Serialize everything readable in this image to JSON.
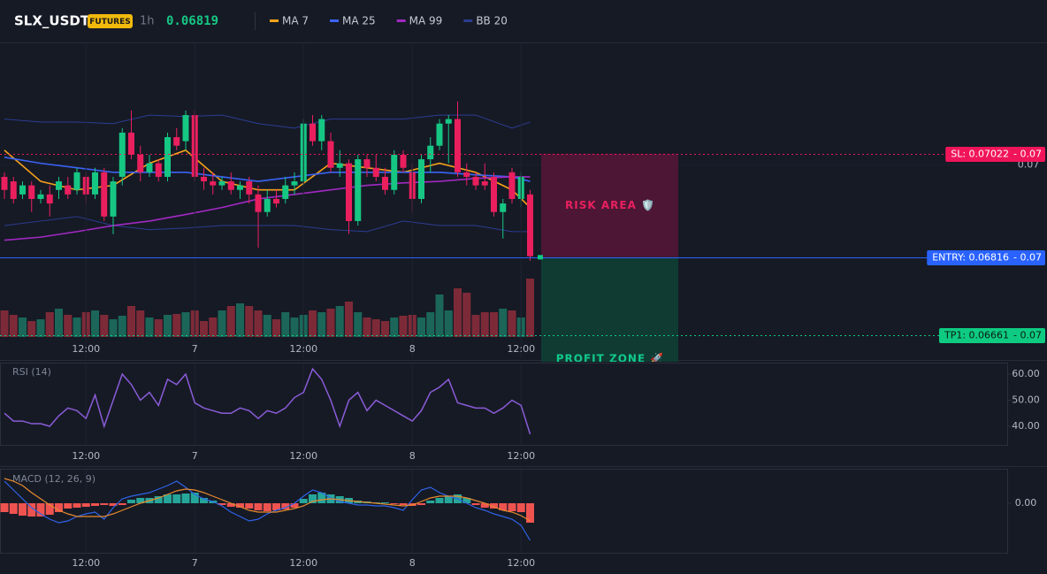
{
  "header": {
    "symbol": "SLX_USDT",
    "badge": "FUTURES",
    "interval": "1h",
    "price": 0.06819
  },
  "chart_data": [
    {
      "type": "candlestick",
      "categories": [
        null,
        null,
        null,
        null,
        null,
        null,
        null,
        null,
        null,
        "12:00",
        null,
        null,
        null,
        null,
        null,
        null,
        null,
        null,
        null,
        null,
        null,
        "7",
        null,
        null,
        null,
        null,
        null,
        null,
        null,
        null,
        null,
        null,
        null,
        "12:00",
        null,
        null,
        null,
        null,
        null,
        null,
        null,
        null,
        null,
        null,
        null,
        "8",
        null,
        null,
        null,
        null,
        null,
        null,
        null,
        null,
        null,
        null,
        null,
        "12:00",
        null
      ],
      "open": [
        0.06976,
        0.06967,
        0.06941,
        0.06959,
        0.06932,
        0.06941,
        0.0695,
        0.06959,
        0.0695,
        0.06976,
        0.06941,
        0.06985,
        0.06897,
        0.06976,
        0.07064,
        0.0702,
        0.06985,
        0.07003,
        0.06976,
        0.07055,
        0.07047,
        0.07099,
        0.06976,
        0.06967,
        0.06959,
        0.06967,
        0.0695,
        0.06967,
        0.06941,
        0.06906,
        0.06932,
        0.06932,
        0.06959,
        0.06967,
        0.07082,
        0.07047,
        0.07047,
        0.06994,
        0.07003,
        0.06888,
        0.07011,
        0.06994,
        0.06976,
        0.0695,
        0.0702,
        0.06985,
        0.06932,
        0.07011,
        0.07038,
        0.07082,
        0.07091,
        0.06985,
        0.06976,
        0.06967,
        0.06976,
        0.06906,
        0.06985,
        0.06932,
        0.06941
      ],
      "high": [
        0.06985,
        0.06976,
        0.06967,
        0.06967,
        0.0695,
        0.06959,
        0.06976,
        0.06976,
        0.06994,
        0.06985,
        0.06994,
        0.06994,
        0.06976,
        0.07073,
        0.07108,
        0.07038,
        0.0702,
        0.07011,
        0.07064,
        0.07073,
        0.07108,
        0.07108,
        0.06994,
        0.06985,
        0.06976,
        0.06985,
        0.06967,
        0.06976,
        0.06959,
        0.0695,
        0.0695,
        0.06976,
        0.06985,
        0.07091,
        0.07099,
        0.07099,
        0.07064,
        0.07029,
        0.07011,
        0.0702,
        0.0702,
        0.0702,
        0.06994,
        0.07029,
        0.07029,
        0.07003,
        0.0702,
        0.07055,
        0.07091,
        0.07099,
        0.07126,
        0.07003,
        0.06985,
        0.07003,
        0.06985,
        0.06932,
        0.06994,
        0.06985,
        0.0695
      ],
      "low": [
        0.06932,
        0.06923,
        0.06932,
        0.06906,
        0.06923,
        0.06897,
        0.06932,
        0.06932,
        0.06941,
        0.06923,
        0.06932,
        0.06888,
        0.06862,
        0.06959,
        0.07011,
        0.06967,
        0.06976,
        0.06967,
        0.06967,
        0.07029,
        0.07029,
        0.06967,
        0.0695,
        0.06941,
        0.0695,
        0.06941,
        0.06932,
        0.06923,
        0.06835,
        0.06897,
        0.06915,
        0.06923,
        0.06941,
        0.06959,
        0.07038,
        0.07029,
        0.06985,
        0.06976,
        0.06862,
        0.06879,
        0.06976,
        0.06967,
        0.06941,
        0.06941,
        0.06985,
        0.06906,
        0.06923,
        0.06985,
        0.07029,
        0.07003,
        0.06976,
        0.06959,
        0.0695,
        0.0695,
        0.06897,
        0.06853,
        0.06923,
        0.06915,
        0.06809
      ],
      "close": [
        0.0695,
        0.06932,
        0.06959,
        0.06932,
        0.06941,
        0.06923,
        0.06967,
        0.06941,
        0.06985,
        0.06941,
        0.06985,
        0.06897,
        0.06967,
        0.07064,
        0.0702,
        0.06985,
        0.07003,
        0.06976,
        0.07055,
        0.07038,
        0.07099,
        0.06976,
        0.06967,
        0.06959,
        0.06967,
        0.0695,
        0.06959,
        0.06941,
        0.06906,
        0.06932,
        0.06923,
        0.06959,
        0.06967,
        0.07082,
        0.07047,
        0.07091,
        0.06994,
        0.07003,
        0.06888,
        0.07011,
        0.06994,
        0.06976,
        0.0695,
        0.0702,
        0.06994,
        0.06932,
        0.07011,
        0.07038,
        0.07082,
        0.07091,
        0.06985,
        0.06976,
        0.06959,
        0.06959,
        0.06906,
        0.06923,
        0.06932,
        0.06976,
        0.06818
      ],
      "up_color": "#16c784",
      "down_color": "#ea1f5e",
      "ylim": [
        0.06615,
        0.0724
      ],
      "yticks": [
        0.07
      ],
      "lines": [
        {
          "name": "MA 7",
          "color": "#f7a21b",
          "x": [
            0,
            4,
            8,
            12,
            16,
            20,
            24,
            28,
            32,
            36,
            40,
            44,
            48,
            52,
            56,
            58
          ],
          "values": [
            0.07029,
            0.06967,
            0.0695,
            0.06959,
            0.07003,
            0.07029,
            0.06967,
            0.0695,
            0.0695,
            0.07003,
            0.06994,
            0.06985,
            0.07003,
            0.06985,
            0.0695,
            0.06915
          ]
        },
        {
          "name": "MA 25",
          "color": "#3b63f5",
          "x": [
            0,
            4,
            8,
            12,
            16,
            20,
            24,
            28,
            32,
            36,
            40,
            44,
            48,
            52,
            56,
            58
          ],
          "values": [
            0.07015,
            0.07003,
            0.06994,
            0.06985,
            0.06985,
            0.06985,
            0.06976,
            0.06967,
            0.06976,
            0.06985,
            0.06985,
            0.06985,
            0.06985,
            0.0698,
            0.06976,
            0.06967
          ]
        },
        {
          "name": "MA 99",
          "color": "#a129c2",
          "x": [
            0,
            4,
            8,
            12,
            16,
            20,
            24,
            28,
            32,
            36,
            40,
            44,
            48,
            52,
            56,
            58
          ],
          "values": [
            0.0685,
            0.06856,
            0.06867,
            0.06879,
            0.06888,
            0.06901,
            0.06915,
            0.06932,
            0.06941,
            0.0695,
            0.06959,
            0.06964,
            0.06967,
            0.06973,
            0.06976,
            0.06976
          ]
        }
      ],
      "bollinger": {
        "name": "BB 20",
        "color": "#2b3d91",
        "x": [
          0,
          4,
          8,
          12,
          16,
          20,
          24,
          28,
          32,
          36,
          40,
          44,
          48,
          52,
          56,
          58
        ],
        "upper": [
          0.07091,
          0.07085,
          0.07085,
          0.07082,
          0.07099,
          0.07096,
          0.07099,
          0.07082,
          0.07073,
          0.07091,
          0.07091,
          0.07091,
          0.07099,
          0.07099,
          0.07073,
          0.07085
        ],
        "lower": [
          0.06879,
          0.06888,
          0.06897,
          0.06879,
          0.06871,
          0.06874,
          0.06879,
          0.06879,
          0.06879,
          0.06871,
          0.06867,
          0.06888,
          0.06879,
          0.06879,
          0.06867,
          0.06867
        ]
      },
      "volume": {
        "values": [
          30,
          25,
          22,
          18,
          20,
          28,
          32,
          25,
          22,
          28,
          30,
          25,
          20,
          24,
          35,
          30,
          22,
          20,
          25,
          26,
          28,
          30,
          18,
          22,
          30,
          35,
          38,
          35,
          30,
          25,
          20,
          28,
          22,
          25,
          30,
          28,
          32,
          35,
          40,
          28,
          22,
          20,
          18,
          22,
          24,
          25,
          22,
          28,
          48,
          30,
          55,
          50,
          25,
          28,
          28,
          32,
          30,
          22,
          66
        ],
        "ylim": [
          0,
          100
        ],
        "up_color": "#1b6658",
        "down_color": "#7d2a38"
      },
      "price_tag_suffix": "- 0.07",
      "price_lines": [
        {
          "label": "SL: 0.07022",
          "value": 0.07022,
          "color": "#f0155a",
          "text_color": "#ffffff",
          "style": "dotted"
        },
        {
          "label": "ENTRY: 0.06816",
          "value": 0.06816,
          "color": "#2962ff",
          "text_color": "#ffffff",
          "style": "solid"
        },
        {
          "label": "TP1: 0.06661",
          "value": 0.06661,
          "color": "#0ecb81",
          "text_color": "#0b1a14",
          "style": "dotted"
        }
      ],
      "zones": [
        {
          "label": "RISK AREA 🛡️",
          "from": 0.07022,
          "to": 0.06816,
          "color": "#4d1634",
          "text_color": "#e8205f"
        },
        {
          "label": "PROFIT ZONE 🚀",
          "from": 0.06816,
          "color": "#0f3b33",
          "text_color": "#12c98a"
        }
      ]
    },
    {
      "type": "line",
      "title": "RSI (14)",
      "color": "#8a5cd8",
      "values": [
        45,
        42,
        42,
        41,
        41,
        40,
        44,
        47,
        46,
        43,
        52,
        40,
        50,
        60,
        56,
        50,
        53,
        48,
        58,
        56,
        60,
        49,
        47,
        46,
        45,
        45,
        47,
        46,
        43,
        46,
        45,
        47,
        51,
        53,
        62,
        58,
        50,
        40,
        50,
        53,
        46,
        50,
        48,
        46,
        44,
        42,
        46,
        53,
        55,
        58,
        49,
        48,
        47,
        47,
        45,
        47,
        50,
        48,
        37
      ],
      "ylim": [
        32.2,
        64.4
      ],
      "yticks": [
        {
          "value": 60,
          "label": "60.00"
        },
        {
          "value": 50,
          "label": "50.00"
        },
        {
          "value": 40,
          "label": "40.00"
        }
      ]
    },
    {
      "type": "macd",
      "title": "MACD (12, 26, 9)",
      "histogram": {
        "up_color": "#26a69a",
        "down_color": "#ef5350",
        "values": [
          -2e-05,
          -2.4e-05,
          -2.8e-05,
          -3e-05,
          -3e-05,
          -2.6e-05,
          -2e-05,
          -1.2e-05,
          -1e-05,
          -8e-06,
          -6e-06,
          -4e-06,
          -6e-06,
          -4e-06,
          8e-06,
          1.2e-05,
          1.2e-05,
          1.6e-05,
          2e-05,
          2e-05,
          2.2e-05,
          2.4e-05,
          1.2e-05,
          6e-06,
          -4e-06,
          -8e-06,
          -1e-05,
          -1.2e-05,
          -1.6e-05,
          -1.8e-05,
          -1.6e-05,
          -1.4e-05,
          -1e-05,
          1e-05,
          2e-05,
          2.4e-05,
          2e-05,
          1.6e-05,
          1.2e-05,
          6e-06,
          4e-06,
          2e-06,
          2e-06,
          -2e-06,
          -4e-06,
          -6e-06,
          -4e-06,
          6e-06,
          1.2e-05,
          1.6e-05,
          2e-05,
          1.2e-05,
          -4e-06,
          -1e-05,
          -1.2e-05,
          -1.6e-05,
          -1.8e-05,
          -2e-05,
          -4.4e-05
        ]
      },
      "series": [
        {
          "color": "#2f63e8",
          "values": [
            5e-05,
            3e-05,
            1e-05,
            -1e-05,
            -2.4e-05,
            -3.6e-05,
            -4.4e-05,
            -4e-05,
            -3e-05,
            -2.4e-05,
            -2e-05,
            -3.6e-05,
            -1e-05,
            1e-05,
            1.6e-05,
            2e-05,
            2.4e-05,
            3.2e-05,
            4e-05,
            5e-05,
            3.6e-05,
            2e-05,
            1e-05,
            4e-06,
            -6e-06,
            -2e-05,
            -3e-05,
            -4e-05,
            -3.6e-05,
            -2.4e-05,
            -1.6e-05,
            -1e-05,
            0,
            1.6e-05,
            3e-05,
            2.4e-05,
            1.2e-05,
            4e-06,
            0,
            -4e-06,
            -4e-06,
            -6e-06,
            -6e-06,
            -1e-05,
            -1.6e-05,
            8e-06,
            3e-05,
            3.6e-05,
            2.4e-05,
            1.6e-05,
            1e-05,
            0,
            -1e-05,
            -1.6e-05,
            -2.4e-05,
            -3e-05,
            -3.6e-05,
            -5e-05,
            -8.4e-05
          ]
        },
        {
          "color": "#e68a2e",
          "values": [
            5.6e-05,
            5e-05,
            4e-05,
            2.4e-05,
            1e-05,
            -4e-06,
            -1.6e-05,
            -2.4e-05,
            -3e-05,
            -3e-05,
            -3e-05,
            -3e-05,
            -2.4e-05,
            -1.6e-05,
            -8e-06,
            0,
            6e-06,
            1.2e-05,
            2e-05,
            2.8e-05,
            3.2e-05,
            3e-05,
            2.4e-05,
            1.6e-05,
            8e-06,
            0,
            -8e-06,
            -1.6e-05,
            -2e-05,
            -2e-05,
            -2e-05,
            -1.6e-05,
            -1.2e-05,
            -6e-06,
            4e-06,
            8e-06,
            1e-05,
            8e-06,
            6e-06,
            4e-06,
            2e-06,
            0,
            -2e-06,
            -4e-06,
            -6e-06,
            -4e-06,
            4e-06,
            1.2e-05,
            1.6e-05,
            1.6e-05,
            1.6e-05,
            1.2e-05,
            6e-06,
            0,
            -8e-06,
            -1.6e-05,
            -2e-05,
            -2.8e-05,
            -4e-05
          ]
        }
      ],
      "ylim": [
        -0.000112,
        7.8e-05
      ],
      "yticks": [
        {
          "value": 0,
          "label": "0.00"
        }
      ]
    }
  ]
}
